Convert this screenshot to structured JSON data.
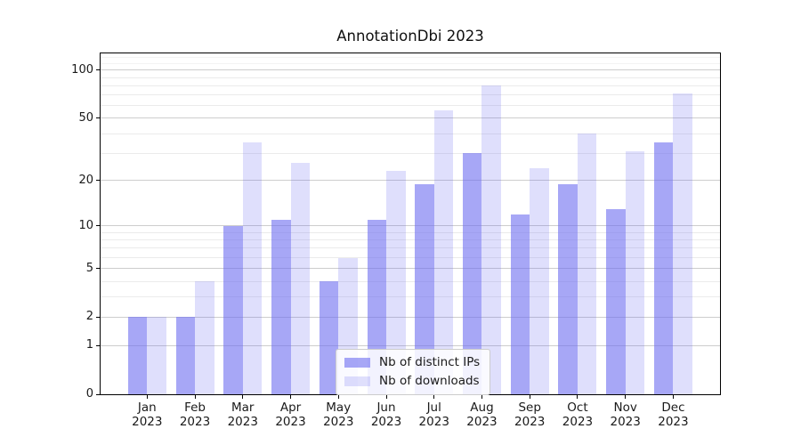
{
  "chart_data": {
    "type": "bar",
    "title": "AnnotationDbi 2023",
    "year_label": "2023",
    "categories": [
      "Jan",
      "Feb",
      "Mar",
      "Apr",
      "May",
      "Jun",
      "Jul",
      "Aug",
      "Sep",
      "Oct",
      "Nov",
      "Dec"
    ],
    "series": [
      {
        "name": "Nb of distinct IPs",
        "values": [
          2,
          2,
          10,
          11,
          4,
          11,
          19,
          30,
          12,
          19,
          13,
          35
        ]
      },
      {
        "name": "Nb of downloads",
        "values": [
          2,
          4,
          35,
          26,
          6,
          23,
          56,
          80,
          24,
          40,
          31,
          72
        ]
      }
    ],
    "xlabel": "",
    "ylabel": "",
    "yscale": "log1p",
    "ylim": [
      0,
      127.5
    ],
    "yticks_major": [
      0,
      1,
      2,
      5,
      10,
      20,
      50,
      100
    ],
    "yticks_minor": [
      3,
      4,
      6,
      7,
      8,
      9,
      30,
      40,
      60,
      70,
      80,
      90,
      110,
      120
    ],
    "grid": "horizontal",
    "legend_position": "lower center"
  },
  "colors": {
    "bar_base_rgb": "108,108,240",
    "ip_bar_alpha": 0.6,
    "downloads_bar_alpha": 0.215,
    "ip_bar_hex": "#a7a7f6",
    "downloads_bar_hex": "#dfdffc",
    "grid_major": "#cdcdcd",
    "grid_minor": "#ebebeb",
    "grid_faint": "#f3f3f3",
    "axis": "#000000",
    "text": "#1a1a1a",
    "legend_border": "#cccccc"
  }
}
